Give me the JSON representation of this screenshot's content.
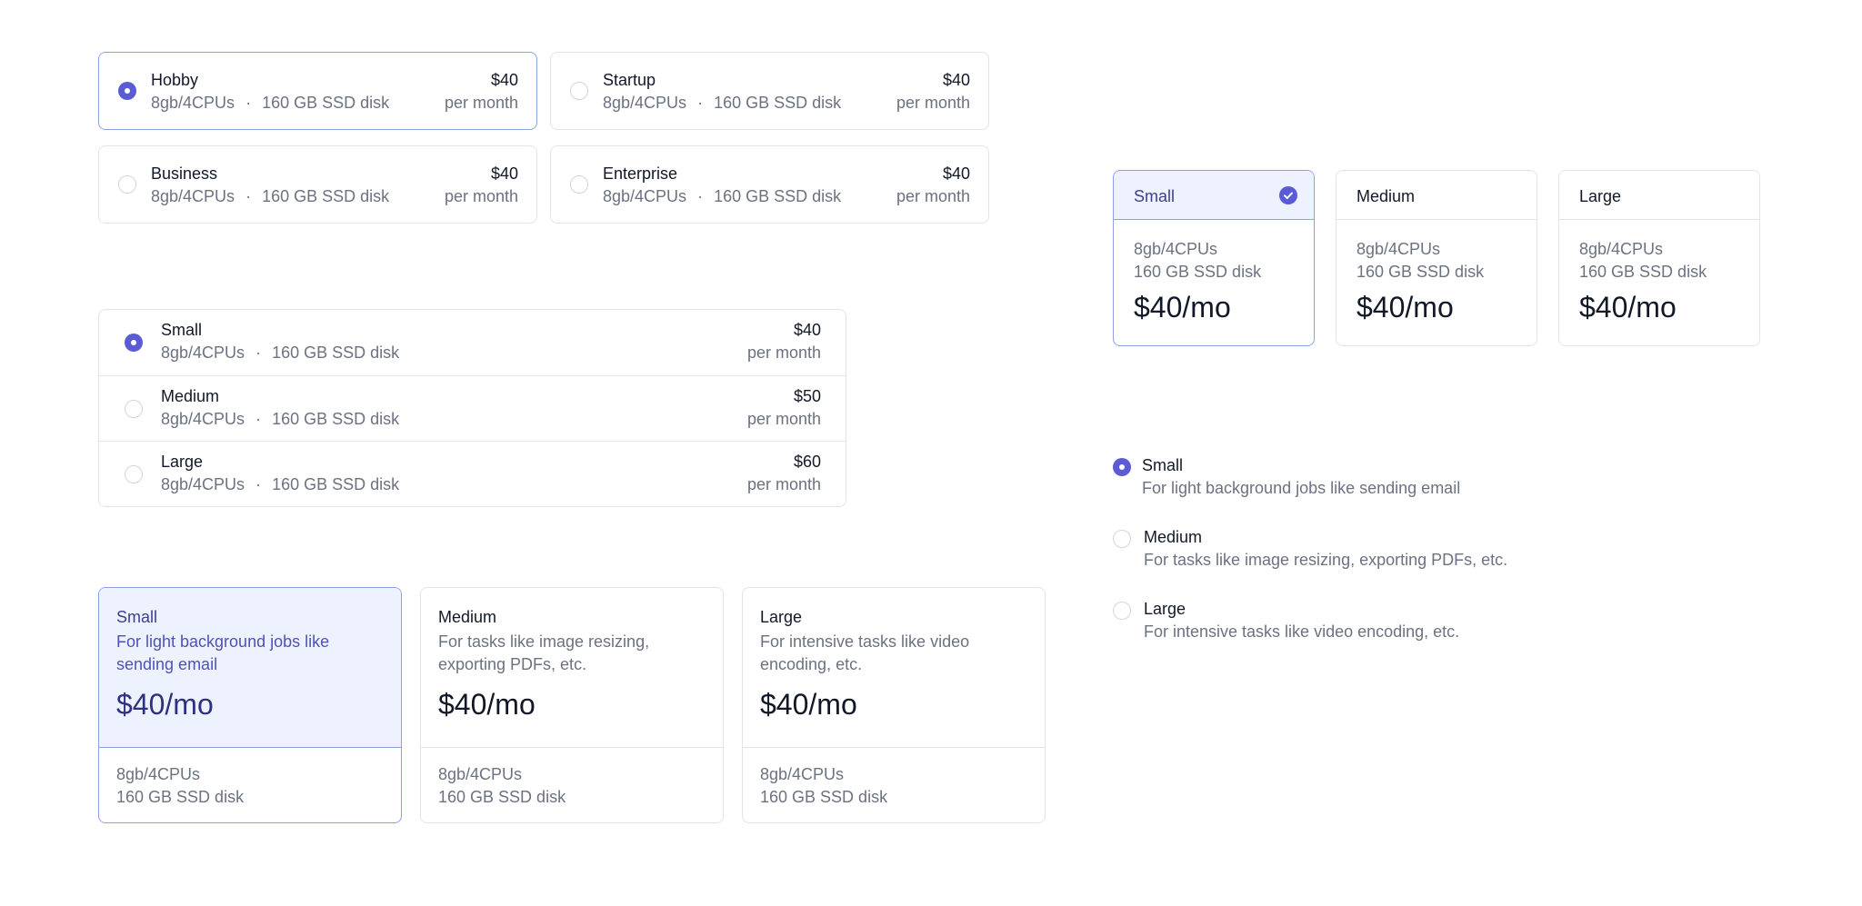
{
  "plan_grid": [
    {
      "name": "Hobby",
      "memory": "8gb/4CPUs",
      "disk": "160 GB SSD disk",
      "price": "$40",
      "period": "per month",
      "selected": true
    },
    {
      "name": "Startup",
      "memory": "8gb/4CPUs",
      "disk": "160 GB SSD disk",
      "price": "$40",
      "period": "per month",
      "selected": false
    },
    {
      "name": "Business",
      "memory": "8gb/4CPUs",
      "disk": "160 GB SSD disk",
      "price": "$40",
      "period": "per month",
      "selected": false
    },
    {
      "name": "Enterprise",
      "memory": "8gb/4CPUs",
      "disk": "160 GB SSD disk",
      "price": "$40",
      "period": "per month",
      "selected": false
    }
  ],
  "stacked_list": [
    {
      "name": "Small",
      "memory": "8gb/4CPUs",
      "disk": "160 GB SSD disk",
      "price": "$40",
      "period": "per month",
      "selected": true
    },
    {
      "name": "Medium",
      "memory": "8gb/4CPUs",
      "disk": "160 GB SSD disk",
      "price": "$50",
      "period": "per month",
      "selected": false
    },
    {
      "name": "Large",
      "memory": "8gb/4CPUs",
      "disk": "160 GB SSD disk",
      "price": "$60",
      "period": "per month",
      "selected": false
    }
  ],
  "description_cards": [
    {
      "name": "Small",
      "description": "For light background jobs like sending email",
      "price": "$40/mo",
      "memory": "8gb/4CPUs",
      "disk": "160 GB SSD disk",
      "selected": true
    },
    {
      "name": "Medium",
      "description": "For tasks like image resizing, exporting PDFs, etc.",
      "price": "$40/mo",
      "memory": "8gb/4CPUs",
      "disk": "160 GB SSD disk",
      "selected": false
    },
    {
      "name": "Large",
      "description": "For intensive tasks like video encoding, etc.",
      "price": "$40/mo",
      "memory": "8gb/4CPUs",
      "disk": "160 GB SSD disk",
      "selected": false
    }
  ],
  "tile_cards": [
    {
      "name": "Small",
      "memory": "8gb/4CPUs",
      "disk": "160 GB SSD disk",
      "price": "$40/mo",
      "selected": true
    },
    {
      "name": "Medium",
      "memory": "8gb/4CPUs",
      "disk": "160 GB SSD disk",
      "price": "$40/mo",
      "selected": false
    },
    {
      "name": "Large",
      "memory": "8gb/4CPUs",
      "disk": "160 GB SSD disk",
      "price": "$40/mo",
      "selected": false
    }
  ],
  "simple_list": [
    {
      "name": "Small",
      "description": "For light background jobs like sending email",
      "selected": true
    },
    {
      "name": "Medium",
      "description": "For tasks like image resizing, exporting PDFs, etc.",
      "selected": false
    },
    {
      "name": "Large",
      "description": "For intensive tasks like video encoding, etc.",
      "selected": false
    }
  ],
  "separator": "·",
  "colors": {
    "accent": "#5b5bd6",
    "selected_border": "#8ea0e4",
    "selected_bg": "#eef2ff",
    "border": "#e2e4e9",
    "muted_text": "#6b7280"
  }
}
